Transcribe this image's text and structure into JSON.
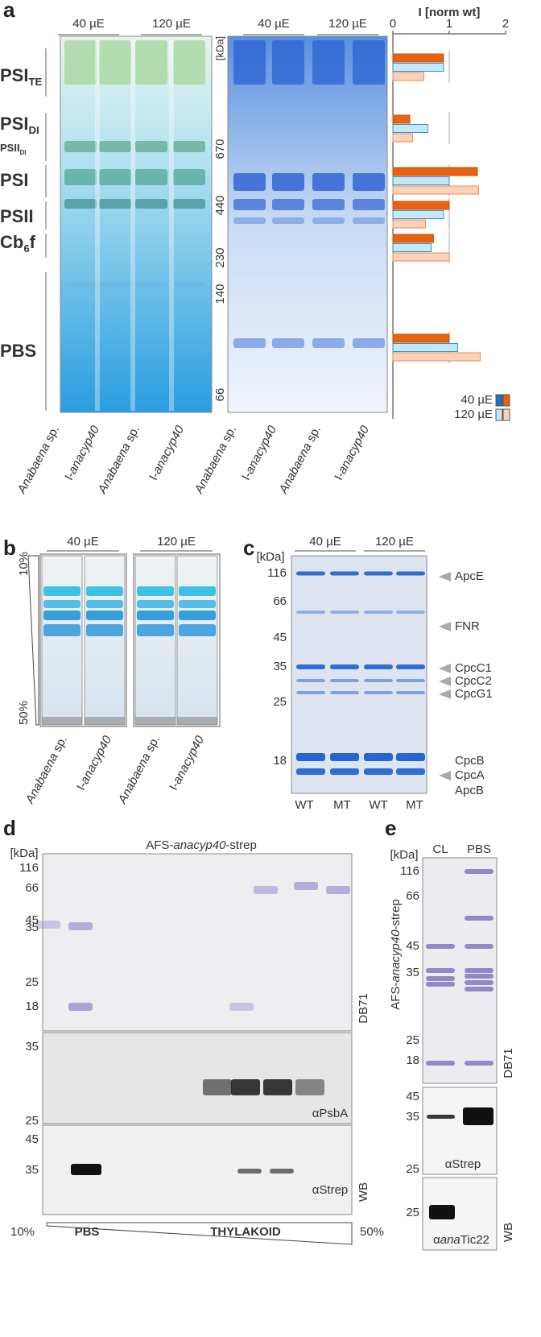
{
  "chart_data": {
    "type": "bar",
    "orientation": "horizontal",
    "title": "I [norm wt]",
    "xlim": [
      0,
      2
    ],
    "xticks": [
      0,
      1,
      2
    ],
    "series": [
      {
        "color": "#e8620f",
        "edge": "#c4500a",
        "values": [
          0.9,
          0.3,
          1.5,
          1.0,
          0.72,
          1.0
        ]
      },
      {
        "color": "#c8e8f7",
        "edge": "#2a95d5",
        "values": [
          0.9,
          0.62,
          1.0,
          0.9,
          0.68,
          1.15
        ]
      },
      {
        "color": "#fcd3ba",
        "edge": "#f08a50",
        "values": [
          0.55,
          0.35,
          1.52,
          0.58,
          1.0,
          1.55
        ]
      }
    ],
    "legend": [
      {
        "label": "40 µE",
        "colors": [
          "#1a6fc0",
          "#e8620f"
        ]
      },
      {
        "label": "120 µE",
        "colors": [
          "#c8e8f7",
          "#fcd3ba"
        ]
      }
    ],
    "legend_position": "lower right"
  },
  "panel_a": {
    "letter": "a",
    "headers": [
      "40 µE",
      "120 µE"
    ],
    "kda": "[kDa]",
    "markers": [
      "670",
      "440",
      "230",
      "140",
      "66"
    ],
    "complexes": [
      {
        "parts": [
          {
            "text": "PSI"
          },
          {
            "text": "TE",
            "sub": true
          }
        ]
      },
      {
        "parts": [
          {
            "text": "PSI"
          },
          {
            "text": "DI",
            "sub": true
          }
        ]
      },
      {
        "parts": [
          {
            "text": "PSII"
          },
          {
            "text": "DI",
            "sub": true
          }
        ]
      },
      {
        "parts": [
          {
            "text": "PSI"
          }
        ]
      },
      {
        "parts": [
          {
            "text": "PSII"
          }
        ]
      },
      {
        "parts": [
          {
            "text": "Cb"
          },
          {
            "text": "6",
            "sub": true
          },
          {
            "text": "f"
          }
        ]
      },
      {
        "parts": [
          {
            "text": "PBS"
          }
        ]
      }
    ],
    "lanes": [
      {
        "color": "#1a7dc0",
        "parts": [
          {
            "text": "Anabaena",
            "italic": true
          },
          {
            "text": " sp."
          }
        ]
      },
      {
        "color": "#e06a10",
        "parts": [
          {
            "text": "I-"
          },
          {
            "text": "anacyp40",
            "italic": true
          }
        ]
      },
      {
        "color": "#1a7dc0",
        "parts": [
          {
            "text": "Anabaena",
            "italic": true
          },
          {
            "text": " sp."
          }
        ]
      },
      {
        "color": "#e06a10",
        "parts": [
          {
            "text": "I-"
          },
          {
            "text": "anacyp40",
            "italic": true
          }
        ]
      },
      {
        "color": "#1a7dc0",
        "parts": [
          {
            "text": "Anabaena",
            "italic": true
          },
          {
            "text": " sp."
          }
        ]
      },
      {
        "color": "#e06a10",
        "parts": [
          {
            "text": "I-"
          },
          {
            "text": "anacyp40",
            "italic": true
          }
        ]
      },
      {
        "color": "#1a7dc0",
        "parts": [
          {
            "text": "Anabaena",
            "italic": true
          },
          {
            "text": " sp."
          }
        ]
      },
      {
        "color": "#e06a10",
        "parts": [
          {
            "text": "I-"
          },
          {
            "text": "anacyp40",
            "italic": true
          }
        ]
      }
    ]
  },
  "panel_b": {
    "letter": "b",
    "headers": [
      "40 µE",
      "120 µE"
    ],
    "gradient": [
      "10%",
      "50%"
    ],
    "lanes": [
      {
        "color": "#1a7dc0",
        "parts": [
          {
            "text": "Anabaena",
            "italic": true
          },
          {
            "text": " sp."
          }
        ]
      },
      {
        "color": "#e06a10",
        "parts": [
          {
            "text": "I-"
          },
          {
            "text": "anacyp40",
            "italic": true
          }
        ]
      },
      {
        "color": "#1a7dc0",
        "parts": [
          {
            "text": "Anabaena",
            "italic": true
          },
          {
            "text": " sp."
          }
        ]
      },
      {
        "color": "#e06a10",
        "parts": [
          {
            "text": "I-"
          },
          {
            "text": "anacyp40",
            "italic": true
          }
        ]
      }
    ]
  },
  "panel_c": {
    "letter": "c",
    "headers": [
      "40 µE",
      "120 µE"
    ],
    "kda": "[kDa]",
    "markers": [
      "116",
      "66",
      "45",
      "35",
      "25",
      "18"
    ],
    "proteins": [
      "ApcE",
      "FNR",
      "CpcC1",
      "CpcC2",
      "CpcG1",
      "CpcB",
      "CpcA",
      "ApcB"
    ],
    "lanes": [
      {
        "text": "WT",
        "color": "#1a7dc0"
      },
      {
        "text": "MT",
        "color": "#e06a10"
      },
      {
        "text": "WT",
        "color": "#1a7dc0"
      },
      {
        "text": "MT",
        "color": "#e06a10"
      }
    ]
  },
  "panel_d": {
    "letter": "d",
    "title": {
      "parts": [
        {
          "text": "AFS-"
        },
        {
          "text": "anacyp40",
          "italic": true
        },
        {
          "text": "-strep"
        }
      ]
    },
    "kda": "[kDa]",
    "markers": [
      "116",
      "66",
      "45",
      "35",
      "25",
      "18"
    ],
    "stain": "DB71",
    "psba_markers": [
      "35",
      "25"
    ],
    "psba": "αPsbA",
    "strep_markers": [
      "45",
      "35"
    ],
    "strep": "αStrep",
    "wb": "WB",
    "bottom": [
      "10%",
      "PBS",
      "THYLAKOID",
      "50%"
    ]
  },
  "panel_e": {
    "letter": "e",
    "lanes": [
      "CL",
      "PBS"
    ],
    "kda": "[kDa]",
    "markers": [
      "116",
      "66",
      "45",
      "35",
      "25",
      "18"
    ],
    "stain": "DB71",
    "side": {
      "parts": [
        {
          "text": "AFS-"
        },
        {
          "text": "anacyp40",
          "italic": true
        },
        {
          "text": "-strep"
        }
      ]
    },
    "strep_markers": [
      "45",
      "35",
      "25"
    ],
    "strep": "αStrep",
    "tic_markers": [
      "25"
    ],
    "tic": {
      "parts": [
        {
          "text": "α"
        },
        {
          "text": "ana",
          "italic": true
        },
        {
          "text": "Tic22"
        }
      ]
    },
    "wb": "WB"
  }
}
